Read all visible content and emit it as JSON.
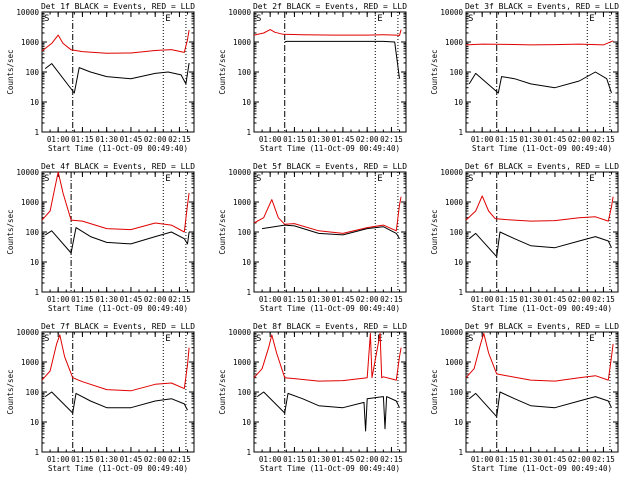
{
  "figure": {
    "colors": {
      "events": "#000000",
      "lld": "#e00000",
      "axes": "#000000",
      "background": "#ffffff"
    }
  },
  "chart_data": [
    {
      "type": "line",
      "title": "Det 1f BLACK = Events, RED = LLD",
      "xlabel": "Start Time (11-Oct-09 00:49:40)",
      "ylabel": "Counts/sec",
      "yscale": "log",
      "ylim": [
        1,
        10000
      ],
      "xlim": [
        "00:50",
        "02:24"
      ],
      "x_ticks": [
        "01:00",
        "01:15",
        "01:30",
        "01:45",
        "02:00",
        "02:15"
      ],
      "y_ticks": [
        "1",
        "10",
        "100",
        "1000",
        "10000"
      ],
      "markers": {
        "start": "S",
        "end": "E"
      },
      "vlines": {
        "dash_dot": "01:09",
        "dotted": [
          "02:05",
          "02:19"
        ]
      },
      "series": [
        {
          "key": "lld",
          "x": [
            "00:50",
            "00:56",
            "01:00",
            "01:03",
            "01:08",
            "01:15",
            "01:30",
            "01:45",
            "02:00",
            "02:10",
            "02:18",
            "02:20",
            "02:21"
          ],
          "values": [
            500,
            900,
            1700,
            900,
            550,
            480,
            420,
            430,
            520,
            560,
            450,
            1200,
            2500
          ]
        },
        {
          "key": "events",
          "x": [
            "00:52",
            "00:56",
            "01:10",
            "01:13",
            "01:20",
            "01:30",
            "01:45",
            "02:00",
            "02:08",
            "02:16",
            "02:19",
            "02:21"
          ],
          "values": [
            130,
            190,
            20,
            140,
            100,
            70,
            60,
            90,
            100,
            80,
            40,
            200
          ]
        }
      ]
    },
    {
      "type": "line",
      "title": "Det 2f BLACK = Events, RED = LLD",
      "xlabel": "Start Time (11-Oct-09 00:49:40)",
      "ylabel": "Counts/sec",
      "yscale": "log",
      "ylim": [
        1,
        10000
      ],
      "xlim": [
        "00:50",
        "02:24"
      ],
      "x_ticks": [
        "01:00",
        "01:15",
        "01:30",
        "01:45",
        "02:00",
        "02:15"
      ],
      "y_ticks": [
        "1",
        "10",
        "100",
        "1000",
        "10000"
      ],
      "markers": {
        "start": "S",
        "end": "E"
      },
      "vlines": {
        "dash_dot": "01:09",
        "dotted": [
          "02:05",
          "02:19"
        ]
      },
      "series": [
        {
          "key": "lld",
          "x": [
            "00:50",
            "00:56",
            "01:00",
            "01:03",
            "01:08",
            "01:20",
            "01:40",
            "02:00",
            "02:10",
            "02:18",
            "02:20",
            "02:21"
          ],
          "values": [
            1700,
            2000,
            2600,
            2100,
            1800,
            1750,
            1700,
            1700,
            1750,
            1700,
            1650,
            2600
          ]
        },
        {
          "key": "events",
          "x": [
            "01:09",
            "01:10",
            "01:30",
            "01:50",
            "02:10",
            "02:17",
            "02:20"
          ],
          "values": [
            1000,
            1050,
            1050,
            1050,
            1050,
            1000,
            60
          ]
        }
      ]
    },
    {
      "type": "line",
      "title": "Det 3f BLACK = Events, RED = LLD",
      "xlabel": "Start Time (11-Oct-09 00:49:40)",
      "ylabel": "Counts/sec",
      "yscale": "log",
      "ylim": [
        1,
        10000
      ],
      "xlim": [
        "00:50",
        "02:24"
      ],
      "x_ticks": [
        "01:00",
        "01:15",
        "01:30",
        "01:45",
        "02:00",
        "02:15"
      ],
      "y_ticks": [
        "1",
        "10",
        "100",
        "1000",
        "10000"
      ],
      "markers": {
        "start": "S",
        "end": "E"
      },
      "vlines": {
        "dash_dot": "01:09",
        "dotted": [
          "02:05",
          "02:19"
        ]
      },
      "series": [
        {
          "key": "lld",
          "x": [
            "00:50",
            "01:00",
            "01:15",
            "01:30",
            "01:45",
            "02:00",
            "02:15",
            "02:21"
          ],
          "values": [
            800,
            850,
            830,
            800,
            820,
            850,
            800,
            1100
          ]
        },
        {
          "key": "events",
          "x": [
            "00:52",
            "00:56",
            "01:10",
            "01:12",
            "01:20",
            "01:30",
            "01:45",
            "02:00",
            "02:10",
            "02:17",
            "02:20"
          ],
          "values": [
            40,
            90,
            20,
            70,
            60,
            40,
            30,
            50,
            100,
            60,
            20
          ]
        }
      ]
    },
    {
      "type": "line",
      "title": "Det 4f BLACK = Events, RED = LLD",
      "xlabel": "Start Time (11-Oct-09 00:49:40)",
      "ylabel": "Counts/sec",
      "yscale": "log",
      "ylim": [
        1,
        10000
      ],
      "xlim": [
        "00:50",
        "02:24"
      ],
      "x_ticks": [
        "01:00",
        "01:15",
        "01:30",
        "01:45",
        "02:00",
        "02:15"
      ],
      "y_ticks": [
        "1",
        "10",
        "100",
        "1000",
        "10000"
      ],
      "markers": {
        "start": "S",
        "end": "E"
      },
      "vlines": {
        "dash_dot": "01:08",
        "dotted": [
          "02:05",
          "02:19"
        ]
      },
      "series": [
        {
          "key": "lld",
          "x": [
            "00:50",
            "00:55",
            "00:58",
            "01:00",
            "01:03",
            "01:08",
            "01:15",
            "01:30",
            "01:45",
            "02:00",
            "02:10",
            "02:18",
            "02:20",
            "02:21"
          ],
          "values": [
            250,
            500,
            3000,
            10000,
            2000,
            250,
            230,
            130,
            120,
            200,
            170,
            100,
            800,
            2000
          ]
        },
        {
          "key": "events",
          "x": [
            "00:52",
            "00:56",
            "01:08",
            "01:11",
            "01:20",
            "01:30",
            "01:45",
            "02:00",
            "02:10",
            "02:18",
            "02:20",
            "02:21"
          ],
          "values": [
            80,
            110,
            20,
            140,
            70,
            45,
            40,
            70,
            100,
            60,
            40,
            100
          ]
        }
      ]
    },
    {
      "type": "line",
      "title": "Det 5f BLACK = Events, RED = LLD",
      "xlabel": "Start Time (11-Oct-09 00:49:40)",
      "ylabel": "Counts/sec",
      "yscale": "log",
      "ylim": [
        1,
        10000
      ],
      "xlim": [
        "00:50",
        "02:24"
      ],
      "x_ticks": [
        "01:00",
        "01:15",
        "01:30",
        "01:45",
        "02:00",
        "02:15"
      ],
      "y_ticks": [
        "1",
        "10",
        "100",
        "1000",
        "10000"
      ],
      "markers": {
        "start": "S",
        "end": "E"
      },
      "vlines": {
        "dash_dot": "01:09",
        "dotted": [
          "02:05",
          "02:19"
        ]
      },
      "series": [
        {
          "key": "lld",
          "x": [
            "00:50",
            "00:56",
            "01:01",
            "01:05",
            "01:09",
            "01:15",
            "01:30",
            "01:45",
            "02:00",
            "02:10",
            "02:18",
            "02:20",
            "02:21"
          ],
          "values": [
            200,
            300,
            1200,
            300,
            180,
            190,
            110,
            90,
            140,
            170,
            110,
            800,
            1500
          ]
        },
        {
          "key": "events",
          "x": [
            "00:55",
            "01:09",
            "01:15",
            "01:30",
            "01:45",
            "02:00",
            "02:10",
            "02:18",
            "02:20"
          ],
          "values": [
            130,
            170,
            160,
            90,
            80,
            130,
            150,
            90,
            60
          ]
        }
      ]
    },
    {
      "type": "line",
      "title": "Det 6f BLACK = Events, RED = LLD",
      "xlabel": "Start Time (11-Oct-09 00:49:40)",
      "ylabel": "Counts/sec",
      "yscale": "log",
      "ylim": [
        1,
        10000
      ],
      "xlim": [
        "00:50",
        "02:24"
      ],
      "x_ticks": [
        "01:00",
        "01:15",
        "01:30",
        "01:45",
        "02:00",
        "02:15"
      ],
      "y_ticks": [
        "1",
        "10",
        "100",
        "1000",
        "10000"
      ],
      "markers": {
        "start": "S",
        "end": "E"
      },
      "vlines": {
        "dash_dot": "01:09",
        "dotted": [
          "02:05",
          "02:19"
        ]
      },
      "series": [
        {
          "key": "lld",
          "x": [
            "00:50",
            "00:56",
            "01:00",
            "01:04",
            "01:08",
            "01:15",
            "01:30",
            "01:45",
            "02:00",
            "02:10",
            "02:18",
            "02:20",
            "02:21"
          ],
          "values": [
            250,
            500,
            1600,
            500,
            280,
            260,
            230,
            240,
            300,
            320,
            230,
            700,
            1500
          ]
        },
        {
          "key": "events",
          "x": [
            "00:52",
            "00:56",
            "01:09",
            "01:11",
            "01:20",
            "01:30",
            "01:45",
            "02:00",
            "02:10",
            "02:18",
            "02:20"
          ],
          "values": [
            60,
            90,
            15,
            100,
            60,
            35,
            30,
            50,
            70,
            50,
            30
          ]
        }
      ]
    },
    {
      "type": "line",
      "title": "Det 7f BLACK = Events, RED = LLD",
      "xlabel": "Start Time (11-Oct-09 00:49:40)",
      "ylabel": "Counts/sec",
      "yscale": "log",
      "ylim": [
        1,
        10000
      ],
      "xlim": [
        "00:50",
        "02:24"
      ],
      "x_ticks": [
        "01:00",
        "01:15",
        "01:30",
        "01:45",
        "02:00",
        "02:15"
      ],
      "y_ticks": [
        "1",
        "10",
        "100",
        "1000",
        "10000"
      ],
      "markers": {
        "start": "S",
        "end": "E"
      },
      "vlines": {
        "dash_dot": "01:09",
        "dotted": [
          "02:05",
          "02:19"
        ]
      },
      "series": [
        {
          "key": "lld",
          "x": [
            "00:50",
            "00:55",
            "00:59",
            "01:01",
            "01:04",
            "01:09",
            "01:15",
            "01:30",
            "01:45",
            "02:00",
            "02:10",
            "02:18",
            "02:20",
            "02:21"
          ],
          "values": [
            250,
            500,
            4000,
            8000,
            1500,
            300,
            220,
            120,
            110,
            180,
            200,
            130,
            800,
            3000
          ]
        },
        {
          "key": "events",
          "x": [
            "00:52",
            "00:56",
            "01:09",
            "01:11",
            "01:20",
            "01:30",
            "01:45",
            "02:00",
            "02:10",
            "02:18",
            "02:20"
          ],
          "values": [
            70,
            100,
            20,
            90,
            50,
            30,
            30,
            50,
            60,
            40,
            25
          ]
        }
      ]
    },
    {
      "type": "line",
      "title": "Det 8f BLACK = Events, RED = LLD",
      "xlabel": "Start Time (11-Oct-09 00:49:40)",
      "ylabel": "Counts/sec",
      "yscale": "log",
      "ylim": [
        1,
        10000
      ],
      "xlim": [
        "00:50",
        "02:24"
      ],
      "x_ticks": [
        "01:00",
        "01:15",
        "01:30",
        "01:45",
        "02:00",
        "02:15"
      ],
      "y_ticks": [
        "1",
        "10",
        "100",
        "1000",
        "10000"
      ],
      "markers": {
        "start": "S",
        "end": "E"
      },
      "vlines": {
        "dash_dot": "01:09",
        "dotted": [
          "02:05",
          "02:19"
        ]
      },
      "series": [
        {
          "key": "lld",
          "x": [
            "00:50",
            "00:55",
            "00:59",
            "01:01",
            "01:04",
            "01:09",
            "01:15",
            "01:30",
            "01:45",
            "02:00",
            "02:02",
            "02:03",
            "02:08",
            "02:09",
            "02:10",
            "02:18",
            "02:20",
            "02:21"
          ],
          "values": [
            300,
            600,
            3000,
            8000,
            2000,
            300,
            280,
            230,
            240,
            300,
            9000,
            300,
            9000,
            300,
            320,
            250,
            1500,
            3000
          ]
        },
        {
          "key": "events",
          "x": [
            "00:52",
            "00:56",
            "01:09",
            "01:11",
            "01:20",
            "01:30",
            "01:45",
            "01:58",
            "01:59",
            "02:00",
            "02:10",
            "02:11",
            "02:12",
            "02:18",
            "02:20"
          ],
          "values": [
            70,
            100,
            20,
            90,
            60,
            35,
            30,
            45,
            5,
            60,
            70,
            6,
            70,
            50,
            30
          ]
        }
      ]
    },
    {
      "type": "line",
      "title": "Det 9f BLACK = Events, RED = LLD",
      "xlabel": "Start Time (11-Oct-09 00:49:40)",
      "ylabel": "Counts/sec",
      "yscale": "log",
      "ylim": [
        1,
        10000
      ],
      "xlim": [
        "00:50",
        "02:24"
      ],
      "x_ticks": [
        "01:00",
        "01:15",
        "01:30",
        "01:45",
        "02:00",
        "02:15"
      ],
      "y_ticks": [
        "1",
        "10",
        "100",
        "1000",
        "10000"
      ],
      "markers": {
        "start": "S",
        "end": "E"
      },
      "vlines": {
        "dash_dot": "01:09",
        "dotted": [
          "02:05",
          "02:19"
        ]
      },
      "series": [
        {
          "key": "lld",
          "x": [
            "00:50",
            "00:55",
            "00:59",
            "01:01",
            "01:04",
            "01:09",
            "01:15",
            "01:30",
            "01:45",
            "02:00",
            "02:10",
            "02:18",
            "02:20",
            "02:21"
          ],
          "values": [
            300,
            600,
            4000,
            9000,
            2000,
            400,
            350,
            250,
            230,
            300,
            350,
            250,
            1500,
            4000
          ]
        },
        {
          "key": "events",
          "x": [
            "00:52",
            "00:56",
            "01:09",
            "01:11",
            "01:20",
            "01:30",
            "01:45",
            "02:00",
            "02:10",
            "02:18",
            "02:20"
          ],
          "values": [
            60,
            90,
            15,
            100,
            60,
            35,
            30,
            50,
            70,
            50,
            30
          ]
        }
      ]
    }
  ]
}
